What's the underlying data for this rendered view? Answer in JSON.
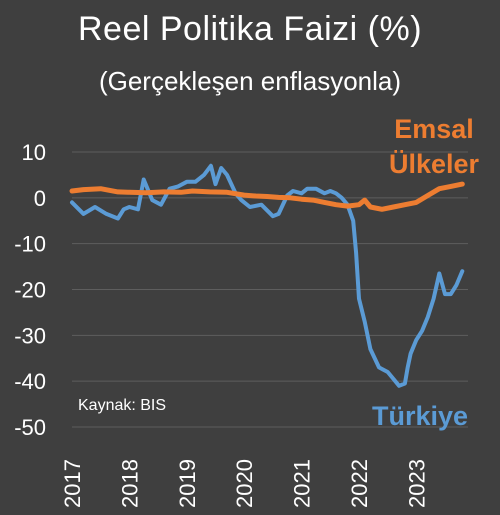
{
  "chart_data": {
    "type": "line",
    "title": "Reel Politika Faizi (%)",
    "subtitle": "(Gerçekleşen enflasyonla)",
    "source": "Kaynak: BIS",
    "xlabel": "",
    "ylabel": "",
    "ylim": [
      -50,
      10
    ],
    "y_ticks": [
      10,
      0,
      -10,
      -20,
      -30,
      -40,
      -50
    ],
    "xlim": [
      2017,
      2023.9
    ],
    "x_ticks": [
      "2017",
      "2018",
      "2019",
      "2020",
      "2021",
      "2022",
      "2023"
    ],
    "grid": true,
    "legend": "direct labels on lines",
    "series": [
      {
        "name": "Türkiye",
        "label_lines": [
          "Türkiye"
        ],
        "color": "#5b9bd5",
        "x": [
          2017.0,
          2017.2,
          2017.4,
          2017.6,
          2017.8,
          2017.9,
          2018.0,
          2018.15,
          2018.25,
          2018.4,
          2018.55,
          2018.7,
          2018.85,
          2019.0,
          2019.15,
          2019.3,
          2019.42,
          2019.5,
          2019.6,
          2019.7,
          2019.85,
          2019.95,
          2020.1,
          2020.3,
          2020.5,
          2020.6,
          2020.75,
          2020.85,
          2021.0,
          2021.1,
          2021.25,
          2021.4,
          2021.5,
          2021.6,
          2021.7,
          2021.8,
          2021.9,
          2021.95,
          2022.0,
          2022.1,
          2022.2,
          2022.35,
          2022.5,
          2022.6,
          2022.7,
          2022.8,
          2022.85,
          2022.9,
          2023.0,
          2023.1,
          2023.2,
          2023.3,
          2023.4,
          2023.5,
          2023.6,
          2023.7,
          2023.8
        ],
        "values": [
          -1,
          -3.5,
          -2,
          -3.5,
          -4.5,
          -2.5,
          -2,
          -2.5,
          4,
          -0.5,
          -1.5,
          2,
          2.5,
          3.5,
          3.5,
          5,
          7,
          3,
          6.5,
          5,
          1,
          -0.5,
          -2,
          -1.5,
          -4,
          -3.5,
          0.5,
          1.5,
          1,
          2,
          2,
          1,
          1.5,
          1,
          0,
          -1.5,
          -5,
          -12,
          -22,
          -27,
          -33,
          -37,
          -38,
          -39.5,
          -41,
          -40.5,
          -37,
          -34,
          -31,
          -29,
          -26,
          -22,
          -16.5,
          -21,
          -21,
          -19,
          -16
        ]
      },
      {
        "name": "Emsal Ülkeler",
        "label_lines": [
          "Emsal",
          "Ülkeler"
        ],
        "color": "#ed7d31",
        "x": [
          2017.0,
          2017.2,
          2017.5,
          2017.8,
          2018.0,
          2018.3,
          2018.6,
          2018.9,
          2019.1,
          2019.4,
          2019.7,
          2020.0,
          2020.2,
          2020.4,
          2020.6,
          2020.8,
          2021.0,
          2021.2,
          2021.4,
          2021.6,
          2021.8,
          2022.0,
          2022.1,
          2022.2,
          2022.4,
          2022.6,
          2022.8,
          2023.0,
          2023.2,
          2023.4,
          2023.6,
          2023.8
        ],
        "values": [
          1.5,
          1.8,
          2,
          1.3,
          1.2,
          1.1,
          1.3,
          1.2,
          1.5,
          1.3,
          1.2,
          0.6,
          0.4,
          0.3,
          0.1,
          0,
          -0.3,
          -0.5,
          -1,
          -1.5,
          -1.8,
          -1.5,
          -0.5,
          -2,
          -2.5,
          -2,
          -1.5,
          -1,
          0.5,
          2,
          2.5,
          3
        ]
      }
    ]
  }
}
